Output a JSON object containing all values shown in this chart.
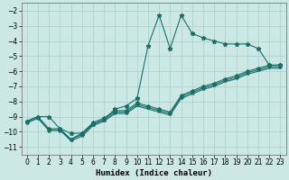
{
  "xlabel": "Humidex (Indice chaleur)",
  "bg_color": "#cce8e5",
  "line_color": "#1a6e68",
  "grid_color": "#aacfcc",
  "series1_x": [
    0,
    1,
    2,
    3,
    4,
    5,
    6,
    7,
    8,
    9,
    10,
    11,
    12,
    13,
    14,
    15,
    16,
    17,
    18,
    19,
    20,
    21,
    22,
    23
  ],
  "series1_y": [
    -9.3,
    -9.0,
    -9.0,
    -9.8,
    -10.1,
    -10.1,
    -9.5,
    -9.2,
    -8.5,
    -8.3,
    -7.8,
    -4.3,
    -2.3,
    -4.5,
    -2.3,
    -3.5,
    -3.8,
    -4.0,
    -4.2,
    -4.2,
    -4.2,
    -4.5,
    -5.6,
    -5.6
  ],
  "series2_x": [
    0,
    1,
    2,
    3,
    4,
    5,
    6,
    7,
    8,
    9,
    10,
    11,
    12,
    13,
    14,
    15,
    16,
    17,
    18,
    19,
    20,
    21,
    22,
    23
  ],
  "series2_y": [
    -9.3,
    -9.0,
    -9.8,
    -9.8,
    -10.5,
    -10.1,
    -9.4,
    -9.1,
    -8.6,
    -8.6,
    -8.1,
    -8.3,
    -8.5,
    -8.7,
    -7.6,
    -7.3,
    -7.0,
    -6.8,
    -6.5,
    -6.3,
    -6.0,
    -5.8,
    -5.6,
    -5.6
  ],
  "series3_x": [
    0,
    1,
    2,
    3,
    4,
    5,
    6,
    7,
    8,
    9,
    10,
    11,
    12,
    13,
    14,
    15,
    16,
    17,
    18,
    19,
    20,
    21,
    22,
    23
  ],
  "series3_y": [
    -9.4,
    -9.1,
    -9.9,
    -9.9,
    -10.5,
    -10.2,
    -9.5,
    -9.2,
    -8.7,
    -8.7,
    -8.2,
    -8.4,
    -8.6,
    -8.8,
    -7.7,
    -7.4,
    -7.1,
    -6.9,
    -6.6,
    -6.4,
    -6.1,
    -5.9,
    -5.7,
    -5.7
  ],
  "series4_x": [
    0,
    1,
    2,
    3,
    4,
    5,
    6,
    7,
    8,
    9,
    10,
    11,
    12,
    13,
    14,
    15,
    16,
    17,
    18,
    19,
    20,
    21,
    22,
    23
  ],
  "series4_y": [
    -9.4,
    -9.1,
    -9.9,
    -9.9,
    -10.6,
    -10.3,
    -9.6,
    -9.3,
    -8.8,
    -8.8,
    -8.3,
    -8.5,
    -8.7,
    -8.9,
    -7.8,
    -7.5,
    -7.2,
    -7.0,
    -6.7,
    -6.5,
    -6.2,
    -6.0,
    -5.8,
    -5.8
  ],
  "ylim_min": -11.5,
  "ylim_max": -1.5,
  "xlim_min": -0.5,
  "xlim_max": 23.5,
  "yticks": [
    -2,
    -3,
    -4,
    -5,
    -6,
    -7,
    -8,
    -9,
    -10,
    -11
  ],
  "xticks": [
    0,
    1,
    2,
    3,
    4,
    5,
    6,
    7,
    8,
    9,
    10,
    11,
    12,
    13,
    14,
    15,
    16,
    17,
    18,
    19,
    20,
    21,
    22,
    23
  ],
  "tick_fontsize": 5.5,
  "xlabel_fontsize": 6.5
}
